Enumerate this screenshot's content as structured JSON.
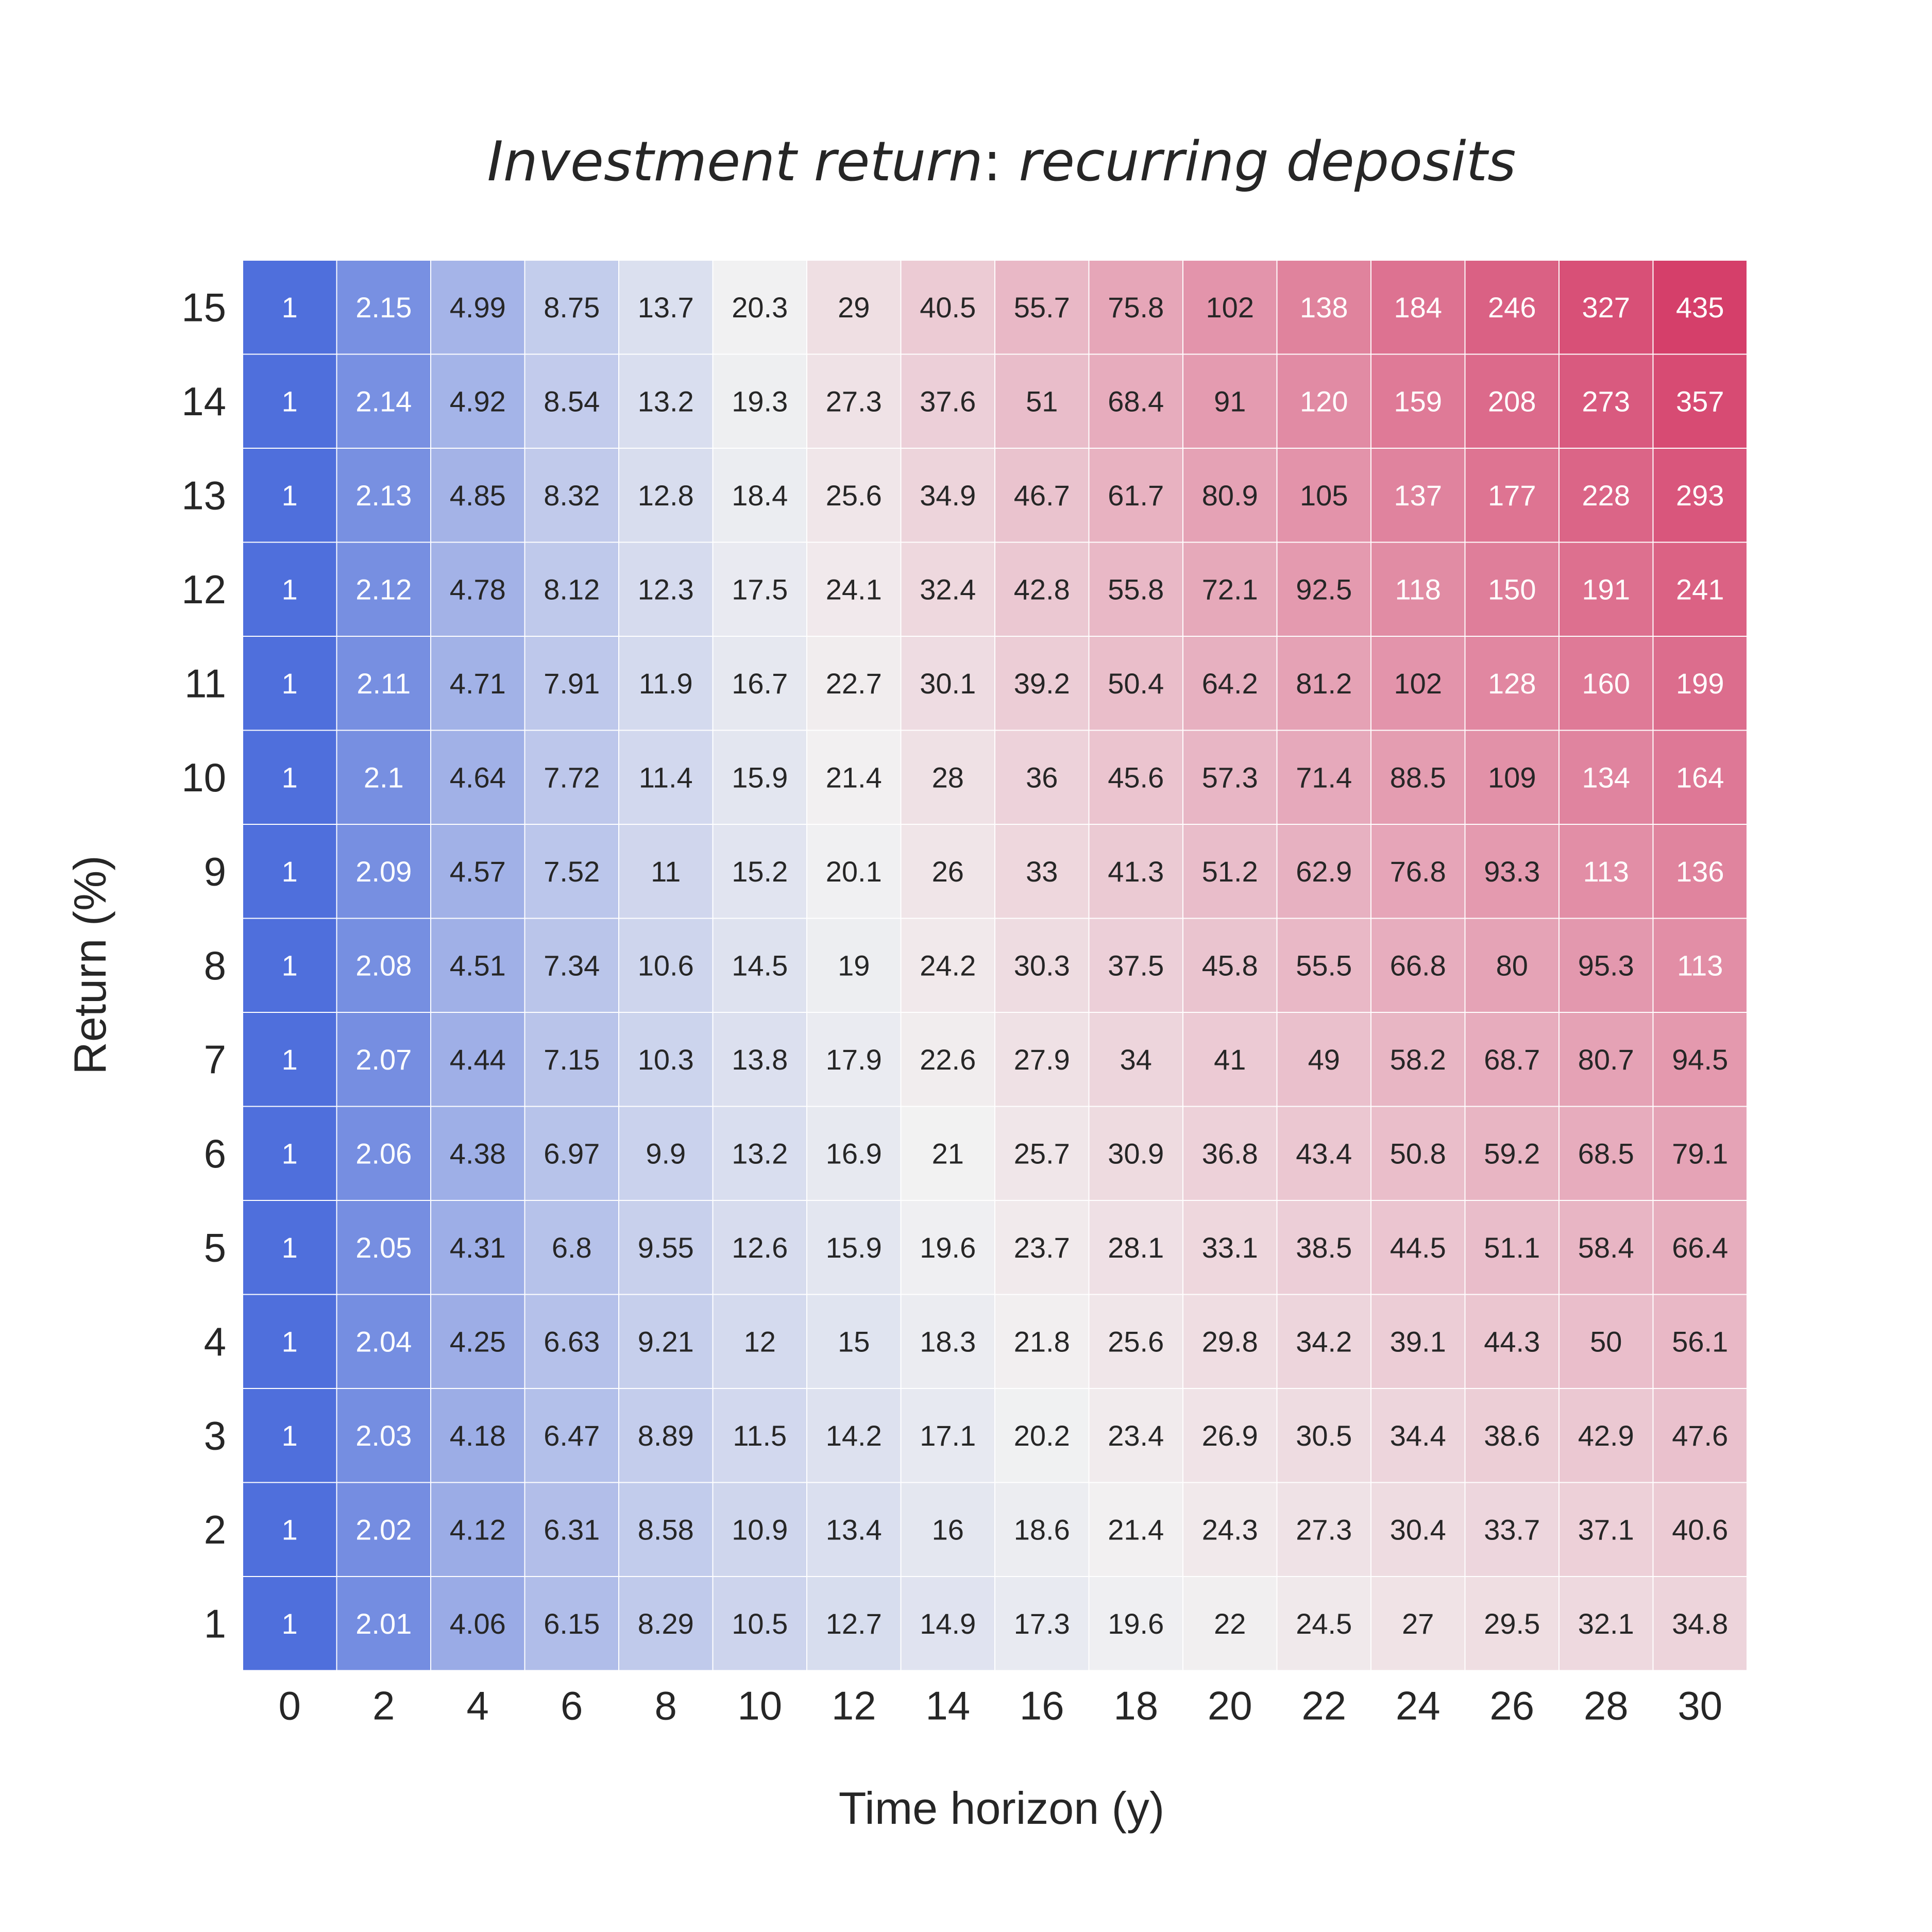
{
  "chart_data": {
    "type": "heatmap",
    "title": {
      "prefix": "Investment return",
      "sep": ":",
      "suffix": " recurring deposits"
    },
    "xlabel": "Time horizon (y)",
    "ylabel": "Return (%)",
    "x": [
      "0",
      "2",
      "4",
      "6",
      "8",
      "10",
      "12",
      "14",
      "16",
      "18",
      "20",
      "22",
      "24",
      "26",
      "28",
      "30"
    ],
    "y": [
      "15",
      "14",
      "13",
      "12",
      "11",
      "10",
      "9",
      "8",
      "7",
      "6",
      "5",
      "4",
      "3",
      "2",
      "1"
    ],
    "values": [
      [
        "1",
        "2.15",
        "4.99",
        "8.75",
        "13.7",
        "20.3",
        "29",
        "40.5",
        "55.7",
        "75.8",
        "102",
        "138",
        "184",
        "246",
        "327",
        "435"
      ],
      [
        "1",
        "2.14",
        "4.92",
        "8.54",
        "13.2",
        "19.3",
        "27.3",
        "37.6",
        "51",
        "68.4",
        "91",
        "120",
        "159",
        "208",
        "273",
        "357"
      ],
      [
        "1",
        "2.13",
        "4.85",
        "8.32",
        "12.8",
        "18.4",
        "25.6",
        "34.9",
        "46.7",
        "61.7",
        "80.9",
        "105",
        "137",
        "177",
        "228",
        "293"
      ],
      [
        "1",
        "2.12",
        "4.78",
        "8.12",
        "12.3",
        "17.5",
        "24.1",
        "32.4",
        "42.8",
        "55.8",
        "72.1",
        "92.5",
        "118",
        "150",
        "191",
        "241"
      ],
      [
        "1",
        "2.11",
        "4.71",
        "7.91",
        "11.9",
        "16.7",
        "22.7",
        "30.1",
        "39.2",
        "50.4",
        "64.2",
        "81.2",
        "102",
        "128",
        "160",
        "199"
      ],
      [
        "1",
        "2.1",
        "4.64",
        "7.72",
        "11.4",
        "15.9",
        "21.4",
        "28",
        "36",
        "45.6",
        "57.3",
        "71.4",
        "88.5",
        "109",
        "134",
        "164"
      ],
      [
        "1",
        "2.09",
        "4.57",
        "7.52",
        "11",
        "15.2",
        "20.1",
        "26",
        "33",
        "41.3",
        "51.2",
        "62.9",
        "76.8",
        "93.3",
        "113",
        "136"
      ],
      [
        "1",
        "2.08",
        "4.51",
        "7.34",
        "10.6",
        "14.5",
        "19",
        "24.2",
        "30.3",
        "37.5",
        "45.8",
        "55.5",
        "66.8",
        "80",
        "95.3",
        "113"
      ],
      [
        "1",
        "2.07",
        "4.44",
        "7.15",
        "10.3",
        "13.8",
        "17.9",
        "22.6",
        "27.9",
        "34",
        "41",
        "49",
        "58.2",
        "68.7",
        "80.7",
        "94.5"
      ],
      [
        "1",
        "2.06",
        "4.38",
        "6.97",
        "9.9",
        "13.2",
        "16.9",
        "21",
        "25.7",
        "30.9",
        "36.8",
        "43.4",
        "50.8",
        "59.2",
        "68.5",
        "79.1"
      ],
      [
        "1",
        "2.05",
        "4.31",
        "6.8",
        "9.55",
        "12.6",
        "15.9",
        "19.6",
        "23.7",
        "28.1",
        "33.1",
        "38.5",
        "44.5",
        "51.1",
        "58.4",
        "66.4"
      ],
      [
        "1",
        "2.04",
        "4.25",
        "6.63",
        "9.21",
        "12",
        "15",
        "18.3",
        "21.8",
        "25.6",
        "29.8",
        "34.2",
        "39.1",
        "44.3",
        "50",
        "56.1"
      ],
      [
        "1",
        "2.03",
        "4.18",
        "6.47",
        "8.89",
        "11.5",
        "14.2",
        "17.1",
        "20.2",
        "23.4",
        "26.9",
        "30.5",
        "34.4",
        "38.6",
        "42.9",
        "47.6"
      ],
      [
        "1",
        "2.02",
        "4.12",
        "6.31",
        "8.58",
        "10.9",
        "13.4",
        "16",
        "18.6",
        "21.4",
        "24.3",
        "27.3",
        "30.4",
        "33.7",
        "37.1",
        "40.6"
      ],
      [
        "1",
        "2.01",
        "4.06",
        "6.15",
        "8.29",
        "10.5",
        "12.7",
        "14.9",
        "17.3",
        "19.6",
        "22",
        "24.5",
        "27",
        "29.5",
        "32.1",
        "34.8"
      ]
    ],
    "colormap": {
      "type": "diverging",
      "scale": "log",
      "low_color": "#4f6fdc",
      "mid_color": "#f2f2f2",
      "high_color": "#d53f6a",
      "light_text_color": "#ffffff",
      "dark_text_color": "#262626"
    },
    "grid": true,
    "cell_separator_color": "#ffffff"
  }
}
